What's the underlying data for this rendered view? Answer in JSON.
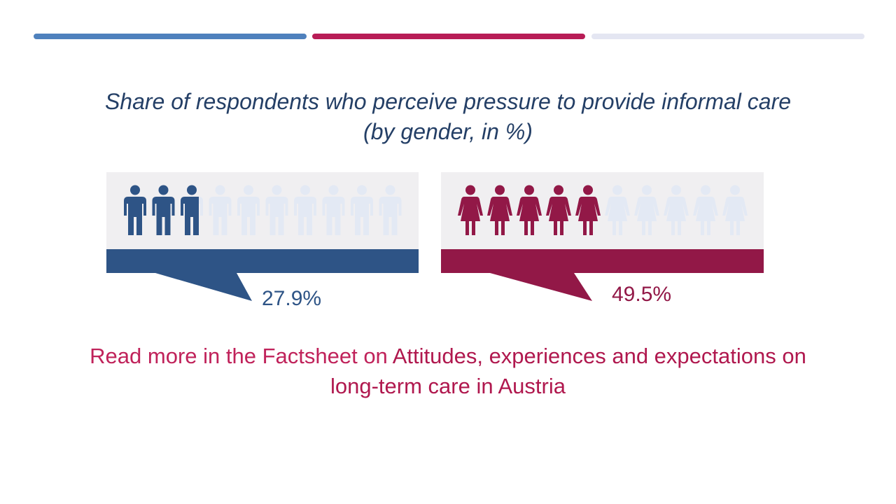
{
  "progress_bars": [
    {
      "color": "#4f81bd"
    },
    {
      "color": "#b81c56"
    },
    {
      "color": "#e4e6f2"
    }
  ],
  "title": "Share of respondents who perceive pressure to provide informal care (by gender, in %)",
  "chart_data": {
    "type": "pictogram",
    "title": "Share of respondents who perceive pressure to provide informal care (by gender, in %)",
    "icons_per_panel": 10,
    "series": [
      {
        "value": 27.9,
        "label": "27.9%",
        "icon": "male-person-icon",
        "color": "#2e5486",
        "faded_color": "#e3e9f4"
      },
      {
        "value": 49.5,
        "label": "49.5%",
        "icon": "female-person-icon",
        "color": "#921847",
        "faded_color": "#e3e9f4"
      }
    ]
  },
  "read_more": {
    "prefix": "Read more in the Factsheet on ",
    "link": "Attitudes, experiences and expectations on long-term care in Austria"
  }
}
